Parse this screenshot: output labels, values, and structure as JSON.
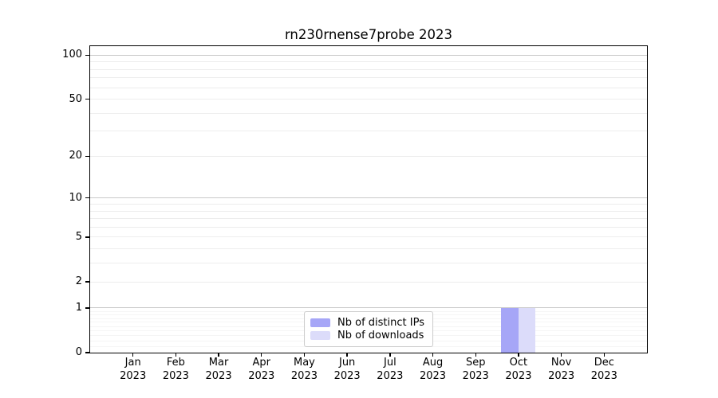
{
  "title": "rn230rnense7probe 2023",
  "colors": {
    "background": "#ffffff",
    "spine": "#000000",
    "major_grid": "#c9c9c9",
    "minor_grid": "#ededed",
    "sub1_minor_grid": "#f5f5f5",
    "legend_border": "#cccccc"
  },
  "chart_data": {
    "type": "bar",
    "title": "rn230rnense7probe 2023",
    "xlabel": "",
    "ylabel": "",
    "scale": "log10(value+1)",
    "grid": true,
    "legend_position": "lower center",
    "ylim": [
      0,
      115
    ],
    "categories": [
      "Jan 2023",
      "Feb 2023",
      "Mar 2023",
      "Apr 2023",
      "May 2023",
      "Jun 2023",
      "Jul 2023",
      "Aug 2023",
      "Sep 2023",
      "Oct 2023",
      "Nov 2023",
      "Dec 2023"
    ],
    "y_ticks": [
      0,
      1,
      2,
      5,
      10,
      20,
      50,
      100
    ],
    "y_tick_labels": [
      "0",
      "1",
      "2",
      "5",
      "10",
      "20",
      "50",
      "100"
    ],
    "decade_gridlines": [
      1,
      10,
      100
    ],
    "minor_gridlines": [
      0.1,
      0.2,
      0.3,
      0.4,
      0.5,
      0.6,
      0.7,
      0.8,
      0.9,
      2,
      3,
      4,
      5,
      6,
      7,
      8,
      9,
      20,
      30,
      40,
      50,
      60,
      70,
      80,
      90
    ],
    "series": [
      {
        "name": "Nb of distinct IPs",
        "color": "#a6a6f7",
        "values": [
          0,
          0,
          0,
          0,
          0,
          0,
          0,
          0,
          0,
          1,
          0,
          0
        ]
      },
      {
        "name": "Nb of downloads",
        "color": "#dcdcfa",
        "values": [
          0,
          0,
          0,
          0,
          0,
          0,
          0,
          0,
          0,
          1,
          0,
          0
        ]
      }
    ]
  }
}
